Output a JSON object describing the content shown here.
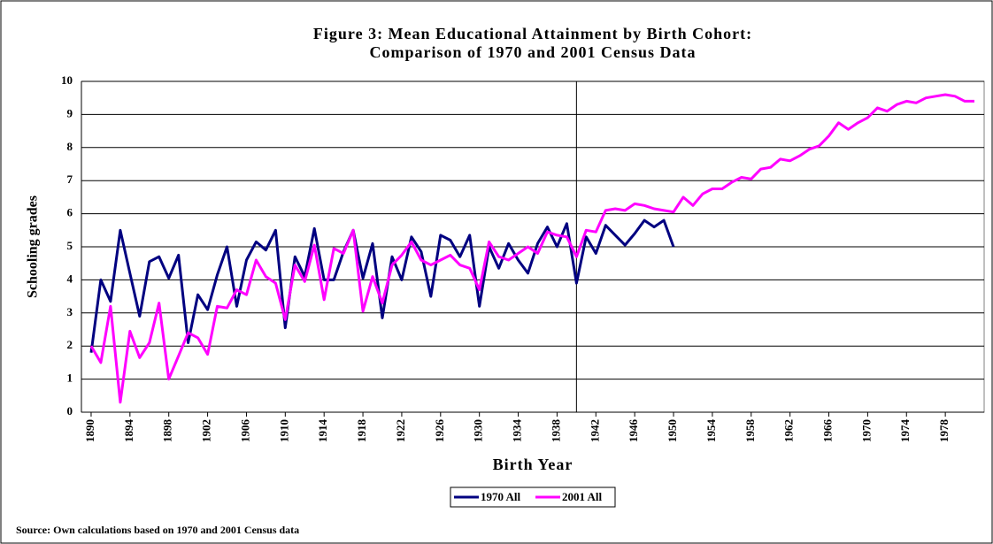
{
  "chart_data": {
    "type": "line",
    "title": [
      "Figure 3: Mean Educational Attainment by Birth Cohort:",
      "Comparison of 1970 and 2001 Census Data"
    ],
    "xlabel": "Birth Year",
    "ylabel": "Schooling grades",
    "source": "Source: Own calculations based on 1970 and 2001 Census data",
    "x": [
      1890,
      1891,
      1892,
      1893,
      1894,
      1895,
      1896,
      1897,
      1898,
      1899,
      1900,
      1901,
      1902,
      1903,
      1904,
      1905,
      1906,
      1907,
      1908,
      1909,
      1910,
      1911,
      1912,
      1913,
      1914,
      1915,
      1916,
      1917,
      1918,
      1919,
      1920,
      1921,
      1922,
      1923,
      1924,
      1925,
      1926,
      1927,
      1928,
      1929,
      1930,
      1931,
      1932,
      1933,
      1934,
      1935,
      1936,
      1937,
      1938,
      1939,
      1940,
      1941,
      1942,
      1943,
      1944,
      1945,
      1946,
      1947,
      1948,
      1949,
      1950,
      1951,
      1952,
      1953,
      1954,
      1955,
      1956,
      1957,
      1958,
      1959,
      1960,
      1961,
      1962,
      1963,
      1964,
      1965,
      1966,
      1967,
      1968,
      1969,
      1970,
      1971,
      1972,
      1973,
      1974,
      1975,
      1976,
      1977,
      1978,
      1979,
      1980,
      1981
    ],
    "series": [
      {
        "name": "1970 All",
        "color": "#000080",
        "values": [
          1.8,
          4.0,
          3.35,
          5.5,
          4.2,
          2.9,
          4.55,
          4.7,
          4.05,
          4.75,
          2.1,
          3.55,
          3.1,
          4.15,
          5.0,
          3.2,
          4.6,
          5.15,
          4.9,
          5.5,
          2.55,
          4.7,
          4.1,
          5.55,
          4.0,
          4.0,
          4.85,
          5.5,
          4.05,
          5.1,
          2.85,
          4.7,
          4.0,
          5.3,
          4.85,
          3.5,
          5.35,
          5.2,
          4.7,
          5.35,
          3.2,
          5.0,
          4.35,
          5.1,
          4.6,
          4.2,
          5.1,
          5.6,
          5.0,
          5.7,
          3.9,
          5.3,
          4.8,
          5.65,
          5.35,
          5.05,
          5.4,
          5.8,
          5.6,
          5.8,
          5.0,
          null,
          null,
          null,
          null,
          null,
          null,
          null,
          null,
          null,
          null,
          null,
          null,
          null,
          null,
          null,
          null,
          null,
          null,
          null,
          null,
          null,
          null,
          null,
          null,
          null,
          null,
          null,
          null,
          null,
          null,
          null
        ]
      },
      {
        "name": "2001 All",
        "color": "#ff00ff",
        "values": [
          2.0,
          1.5,
          3.2,
          0.3,
          2.45,
          1.65,
          2.1,
          3.3,
          1.0,
          1.7,
          2.4,
          2.25,
          1.75,
          3.2,
          3.15,
          3.7,
          3.55,
          4.6,
          4.1,
          3.9,
          2.8,
          4.45,
          3.95,
          5.05,
          3.4,
          4.95,
          4.8,
          5.5,
          3.05,
          4.1,
          3.3,
          4.45,
          4.75,
          5.15,
          4.6,
          4.45,
          4.6,
          4.75,
          4.45,
          4.35,
          3.7,
          5.15,
          4.7,
          4.6,
          4.8,
          5.0,
          4.8,
          5.45,
          5.35,
          5.3,
          4.7,
          5.5,
          5.45,
          6.1,
          6.15,
          6.1,
          6.3,
          6.25,
          6.15,
          6.1,
          6.05,
          6.5,
          6.25,
          6.6,
          6.75,
          6.75,
          6.95,
          7.1,
          7.05,
          7.35,
          7.4,
          7.65,
          7.6,
          7.75,
          7.95,
          8.05,
          8.35,
          8.75,
          8.55,
          8.75,
          8.9,
          9.2,
          9.1,
          9.3,
          9.4,
          9.35,
          9.5,
          9.55,
          9.6,
          9.55,
          9.4,
          9.4
        ]
      }
    ],
    "xlim": [
      1889,
      1982
    ],
    "ylim": [
      0,
      10
    ],
    "xticks": [
      1890,
      1894,
      1898,
      1902,
      1906,
      1910,
      1914,
      1918,
      1922,
      1926,
      1930,
      1934,
      1938,
      1942,
      1946,
      1950,
      1954,
      1958,
      1962,
      1966,
      1970,
      1974,
      1978
    ],
    "yticks": [
      0,
      1,
      2,
      3,
      4,
      5,
      6,
      7,
      8,
      9,
      10
    ],
    "vline": 1940,
    "grid": true,
    "legend": "bottom"
  }
}
